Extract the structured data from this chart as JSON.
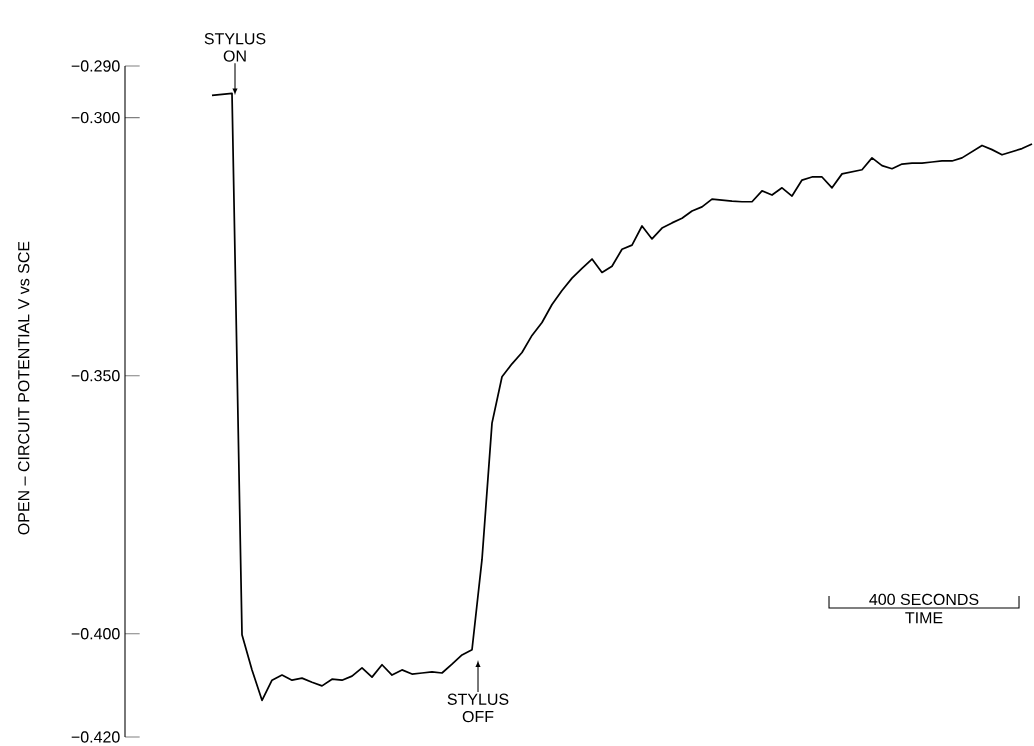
{
  "chart_data": {
    "type": "line",
    "ylabel": "OPEN – CIRCUIT POTENTIAL V vs SCE",
    "xlabel": "TIME",
    "categories": [
      null,
      null,
      null,
      null,
      null,
      null,
      null,
      null,
      null,
      null,
      null,
      null,
      null,
      null,
      null,
      null,
      null,
      null,
      null,
      null,
      null,
      null,
      null,
      null,
      null,
      null,
      null,
      null,
      null,
      null,
      null,
      null,
      null,
      null,
      null,
      null,
      null,
      null,
      null,
      null,
      null,
      null,
      null,
      null,
      null,
      null,
      null,
      null,
      null,
      null,
      null,
      null,
      null,
      null,
      null,
      null,
      null,
      null,
      null,
      null,
      null,
      null,
      null,
      null,
      null,
      null,
      null,
      null,
      null,
      null,
      null,
      null,
      null,
      null,
      null,
      null,
      null,
      null,
      null,
      null,
      null,
      null,
      null
    ],
    "ylim": [
      -0.42,
      -0.29
    ],
    "yticks": [
      {
        "value": -0.29,
        "label": "−0.290"
      },
      {
        "value": -0.3,
        "label": "−0.300"
      },
      {
        "value": -0.35,
        "label": "−0.350"
      },
      {
        "value": -0.4,
        "label": "−0.400"
      },
      {
        "value": -0.42,
        "label": "−0.420"
      }
    ],
    "tick_labels": "y",
    "annotations": [
      "STYLUS ON",
      "STYLUS OFF",
      "400 SECONDS"
    ],
    "series": [
      {
        "color": "#000000",
        "values": [
          -0.2957,
          -0.2955,
          -0.2953,
          -0.4002,
          -0.407,
          -0.4129,
          -0.409,
          -0.408,
          -0.409,
          -0.4086,
          -0.4094,
          -0.4101,
          -0.4088,
          -0.409,
          -0.4082,
          -0.4066,
          -0.4084,
          -0.406,
          -0.408,
          -0.407,
          -0.4078,
          -0.4076,
          -0.4074,
          -0.4076,
          -0.4059,
          -0.4041,
          -0.4031,
          -0.3856,
          -0.3592,
          -0.3502,
          -0.3477,
          -0.3455,
          -0.3422,
          -0.3397,
          -0.3362,
          -0.3335,
          -0.3311,
          -0.3292,
          -0.3274,
          -0.33,
          -0.3288,
          -0.3255,
          -0.3247,
          -0.321,
          -0.3235,
          -0.3214,
          -0.3204,
          -0.3195,
          -0.3181,
          -0.3173,
          -0.3158,
          -0.316,
          -0.3162,
          -0.3163,
          -0.3163,
          -0.3142,
          -0.315,
          -0.3136,
          -0.3152,
          -0.3121,
          -0.3115,
          -0.3115,
          -0.3136,
          -0.3109,
          -0.3105,
          -0.3101,
          -0.3078,
          -0.3093,
          -0.3099,
          -0.309,
          -0.3088,
          -0.3088,
          -0.3086,
          -0.3084,
          -0.3084,
          -0.3078,
          -0.3066,
          -0.3054,
          -0.3062,
          -0.3072,
          -0.3066,
          -0.306,
          -0.3051
        ]
      }
    ]
  }
}
